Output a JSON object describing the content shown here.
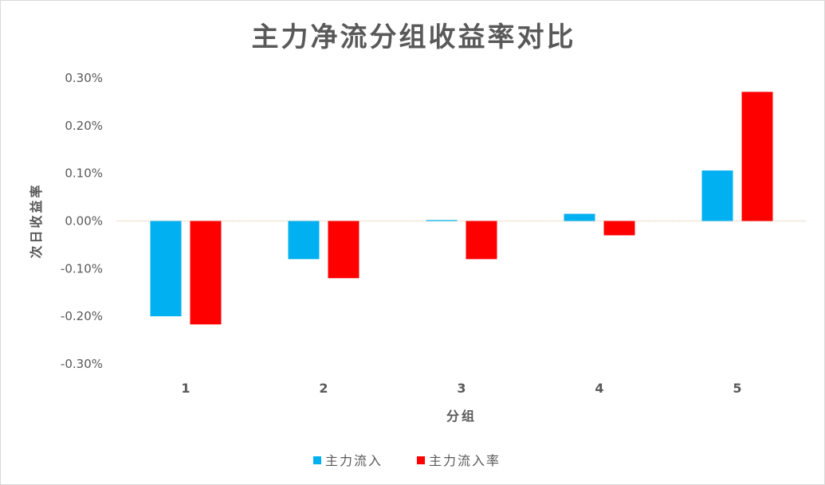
{
  "chart_data": {
    "type": "bar",
    "title": "主力净流分组收益率对比",
    "xlabel": "分组",
    "ylabel": "次日收益率",
    "categories": [
      "1",
      "2",
      "3",
      "4",
      "5"
    ],
    "series": [
      {
        "name": "主力流入",
        "color": "#00B0F0",
        "values": [
          -0.2,
          -0.08,
          0.002,
          0.015,
          0.106
        ]
      },
      {
        "name": "主力流入率",
        "color": "#FF0000",
        "values": [
          -0.217,
          -0.12,
          -0.08,
          -0.03,
          0.271
        ]
      }
    ],
    "value_unit": "%",
    "ylim": [
      -0.3,
      0.3
    ],
    "yticks": [
      "0.30%",
      "0.20%",
      "0.10%",
      "0.00%",
      "-0.10%",
      "-0.20%",
      "-0.30%"
    ],
    "ytick_values": [
      0.3,
      0.2,
      0.1,
      0.0,
      -0.1,
      -0.2,
      -0.3
    ],
    "grid": false,
    "legend_position": "bottom"
  }
}
